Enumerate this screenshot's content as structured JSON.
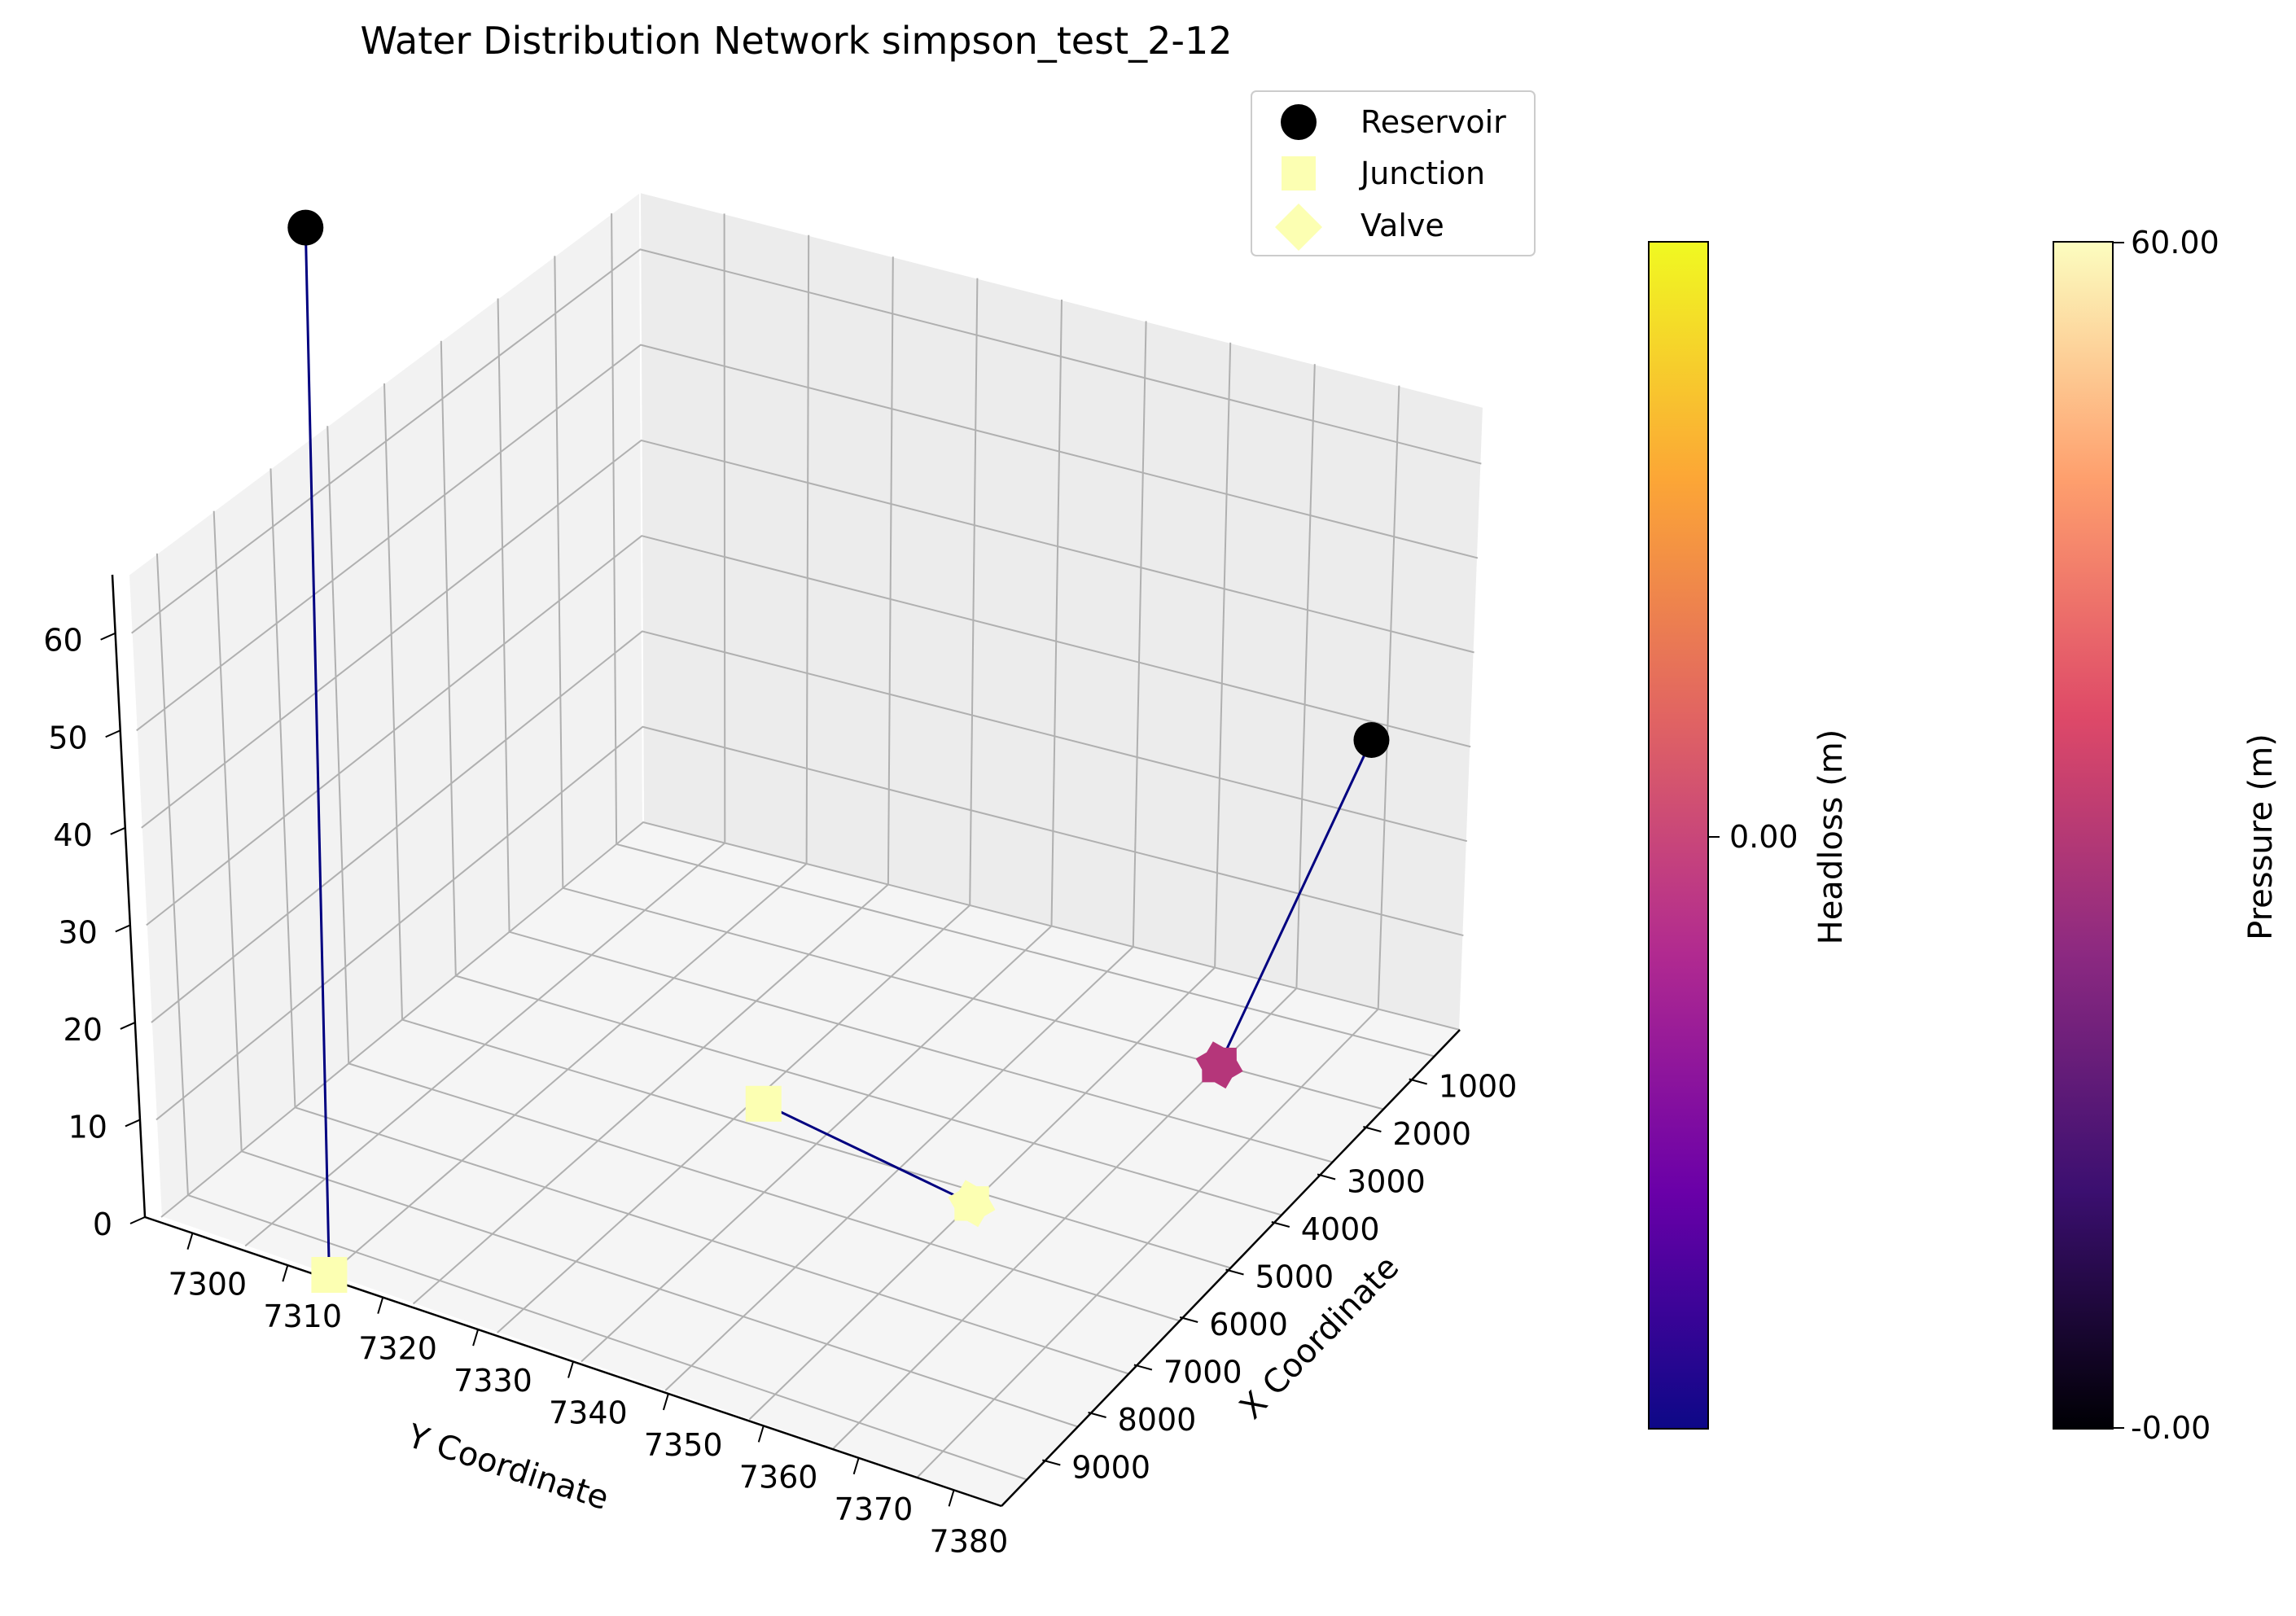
{
  "chart_data": {
    "type": "scatter",
    "projection": "3d",
    "title": "Water Distribution Network simpson_test_2-12",
    "xlabel": "X Coordinate",
    "ylabel": "Y Coordinate",
    "zlabel": "",
    "grid": true,
    "legend_position": "top-right",
    "x_ticks": [
      "1000",
      "2000",
      "3000",
      "4000",
      "5000",
      "6000",
      "7000",
      "8000",
      "9000"
    ],
    "y_ticks": [
      "7300",
      "7310",
      "7320",
      "7330",
      "7340",
      "7350",
      "7360",
      "7370",
      "7380"
    ],
    "z_ticks": [
      "0",
      "10",
      "20",
      "30",
      "40",
      "50",
      "60"
    ],
    "xlim": [
      0,
      10000
    ],
    "ylim": [
      7295,
      7385
    ],
    "zlim": [
      0,
      66
    ],
    "legend": [
      {
        "label": "Reservoir",
        "marker": "circle",
        "color": "#000000"
      },
      {
        "label": "Junction",
        "marker": "square",
        "color": "#fcffb2"
      },
      {
        "label": "Valve",
        "marker": "diamond",
        "color": "#fcffb2"
      }
    ],
    "series": [
      {
        "name": "Reservoir",
        "marker": "circle",
        "points": [
          {
            "x": 2000,
            "y": 7380,
            "z": 60,
            "color": "#000000"
          },
          {
            "x": 9000,
            "y": 7298,
            "z": 30,
            "color": "#000000"
          }
        ]
      },
      {
        "name": "Junction",
        "marker": "square",
        "points": [
          {
            "x": 2000,
            "y": 7385,
            "z": 0,
            "color": "#fcffb2"
          },
          {
            "x": 4500,
            "y": 7342,
            "z": 3,
            "color": "#fcffb2"
          }
        ]
      },
      {
        "name": "Valve",
        "marker": "diamond",
        "points": [
          {
            "x": 7000,
            "y": 7342,
            "z": 0,
            "color": "#fcffb2"
          },
          {
            "x": 8000,
            "y": 7310,
            "z": 0,
            "color": "#b5367a"
          }
        ]
      }
    ],
    "links": [
      {
        "from": [
          2000,
          7380,
          60
        ],
        "to": [
          2000,
          7385,
          0
        ],
        "color": "#000080"
      },
      {
        "from": [
          9000,
          7298,
          30
        ],
        "to": [
          8000,
          7310,
          0
        ],
        "color": "#000080"
      },
      {
        "from": [
          4500,
          7342,
          3
        ],
        "to": [
          7000,
          7342,
          0
        ],
        "color": "#000080"
      }
    ],
    "colorbars": [
      {
        "label": "Headloss (m)",
        "colormap": "plasma",
        "ticks": [
          "0.00"
        ],
        "colors": [
          "#0d0887",
          "#6a00a8",
          "#b12a90",
          "#e16462",
          "#fca636",
          "#f0f921"
        ]
      },
      {
        "label": "Pressure (m)",
        "colormap": "magma",
        "ticks": [
          "-0.00",
          "60.00"
        ],
        "colors": [
          "#000004",
          "#3b0f70",
          "#8c2981",
          "#de4968",
          "#fe9f6d",
          "#fcfdbf"
        ]
      }
    ]
  }
}
